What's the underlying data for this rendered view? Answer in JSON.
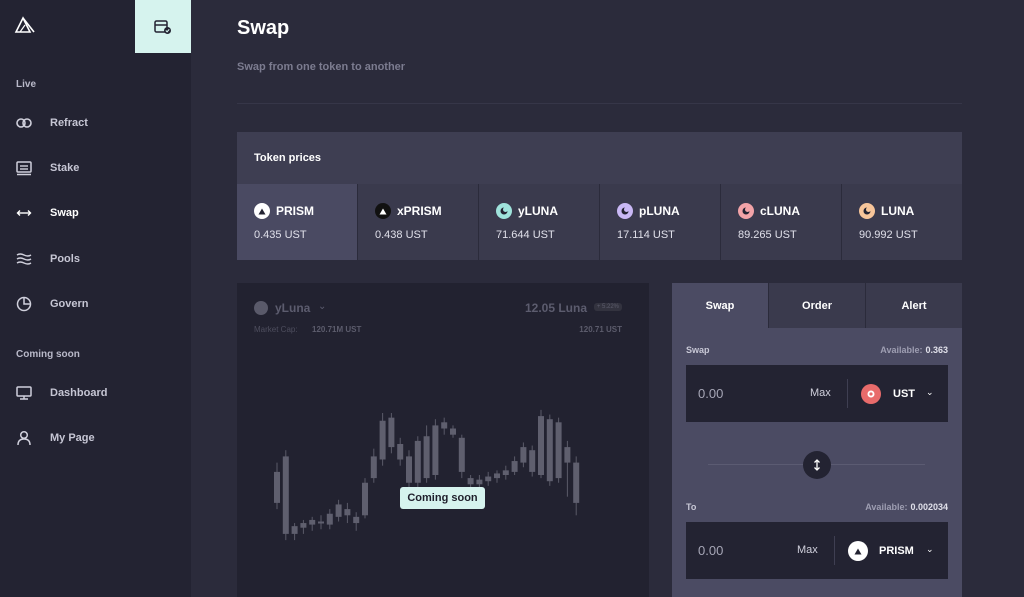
{
  "sidebar": {
    "sections": [
      {
        "label": "Live"
      },
      {
        "label": "Coming soon"
      }
    ],
    "items": [
      {
        "label": "Refract",
        "icon": "link-icon"
      },
      {
        "label": "Stake",
        "icon": "stake-icon"
      },
      {
        "label": "Swap",
        "icon": "swap-arrows-icon"
      },
      {
        "label": "Pools",
        "icon": "pools-icon"
      },
      {
        "label": "Govern",
        "icon": "pie-chart-icon"
      },
      {
        "label": "Dashboard",
        "icon": "monitor-icon"
      },
      {
        "label": "My Page",
        "icon": "user-icon"
      }
    ]
  },
  "header": {
    "title": "Swap",
    "subtitle": "Swap from one token to another"
  },
  "prices": {
    "heading": "Token prices",
    "tokens": [
      {
        "name": "PRISM",
        "price": "0.435 UST",
        "color": "#ffffff"
      },
      {
        "name": "xPRISM",
        "price": "0.438 UST",
        "color": "#111111"
      },
      {
        "name": "yLUNA",
        "price": "71.644 UST",
        "color": "#9fe3dc"
      },
      {
        "name": "pLUNA",
        "price": "17.114 UST",
        "color": "#c9b8f5"
      },
      {
        "name": "cLUNA",
        "price": "89.265 UST",
        "color": "#f2a3a8"
      },
      {
        "name": "LUNA",
        "price": "90.992 UST",
        "color": "#f7c59a"
      }
    ]
  },
  "chart": {
    "token": "yLuna",
    "market_cap_label": "Market Cap:",
    "market_cap_value": "120.71M UST",
    "price": "12.05 Luna",
    "change": "+ 5.22%",
    "price_ust": "120.71 UST",
    "overlay": "Coming soon"
  },
  "chart_data": {
    "type": "candlestick",
    "candles": [
      {
        "o": 0.62,
        "c": 0.42,
        "h": 0.68,
        "l": 0.38
      },
      {
        "o": 0.72,
        "c": 0.22,
        "h": 0.76,
        "l": 0.18
      },
      {
        "o": 0.22,
        "c": 0.27,
        "h": 0.29,
        "l": 0.18
      },
      {
        "o": 0.26,
        "c": 0.29,
        "h": 0.31,
        "l": 0.22
      },
      {
        "o": 0.28,
        "c": 0.31,
        "h": 0.33,
        "l": 0.24
      },
      {
        "o": 0.3,
        "c": 0.3,
        "h": 0.34,
        "l": 0.25
      },
      {
        "o": 0.28,
        "c": 0.35,
        "h": 0.38,
        "l": 0.25
      },
      {
        "o": 0.33,
        "c": 0.41,
        "h": 0.44,
        "l": 0.3
      },
      {
        "o": 0.38,
        "c": 0.34,
        "h": 0.42,
        "l": 0.29
      },
      {
        "o": 0.33,
        "c": 0.29,
        "h": 0.36,
        "l": 0.24
      },
      {
        "o": 0.34,
        "c": 0.55,
        "h": 0.58,
        "l": 0.32
      },
      {
        "o": 0.58,
        "c": 0.72,
        "h": 0.77,
        "l": 0.55
      },
      {
        "o": 0.7,
        "c": 0.95,
        "h": 1.0,
        "l": 0.66
      },
      {
        "o": 0.97,
        "c": 0.78,
        "h": 1.0,
        "l": 0.74
      },
      {
        "o": 0.8,
        "c": 0.7,
        "h": 0.84,
        "l": 0.66
      },
      {
        "o": 0.72,
        "c": 0.55,
        "h": 0.76,
        "l": 0.52
      },
      {
        "o": 0.55,
        "c": 0.82,
        "h": 0.85,
        "l": 0.52
      },
      {
        "o": 0.85,
        "c": 0.58,
        "h": 0.92,
        "l": 0.55
      },
      {
        "o": 0.6,
        "c": 0.92,
        "h": 0.96,
        "l": 0.57
      },
      {
        "o": 0.94,
        "c": 0.9,
        "h": 0.97,
        "l": 0.86
      },
      {
        "o": 0.9,
        "c": 0.86,
        "h": 0.92,
        "l": 0.84
      },
      {
        "o": 0.84,
        "c": 0.62,
        "h": 0.86,
        "l": 0.58
      },
      {
        "o": 0.58,
        "c": 0.54,
        "h": 0.6,
        "l": 0.5
      },
      {
        "o": 0.54,
        "c": 0.57,
        "h": 0.6,
        "l": 0.51
      },
      {
        "o": 0.56,
        "c": 0.59,
        "h": 0.62,
        "l": 0.53
      },
      {
        "o": 0.58,
        "c": 0.61,
        "h": 0.63,
        "l": 0.55
      },
      {
        "o": 0.6,
        "c": 0.63,
        "h": 0.66,
        "l": 0.57
      },
      {
        "o": 0.62,
        "c": 0.69,
        "h": 0.72,
        "l": 0.6
      },
      {
        "o": 0.68,
        "c": 0.78,
        "h": 0.81,
        "l": 0.65
      },
      {
        "o": 0.76,
        "c": 0.62,
        "h": 0.79,
        "l": 0.59
      },
      {
        "o": 0.6,
        "c": 0.98,
        "h": 1.02,
        "l": 0.58
      },
      {
        "o": 0.96,
        "c": 0.56,
        "h": 0.99,
        "l": 0.53
      },
      {
        "o": 0.58,
        "c": 0.94,
        "h": 0.97,
        "l": 0.55
      },
      {
        "o": 0.78,
        "c": 0.68,
        "h": 0.82,
        "l": 0.46
      },
      {
        "o": 0.68,
        "c": 0.42,
        "h": 0.72,
        "l": 0.34
      }
    ]
  },
  "swap": {
    "tabs": [
      "Swap",
      "Order",
      "Alert"
    ],
    "from": {
      "label": "Swap",
      "available_label": "Available:",
      "available_value": "0.363",
      "amount": "0.00",
      "max_label": "Max",
      "token": "UST",
      "token_color": "#e86b6b"
    },
    "to": {
      "label": "To",
      "available_label": "Available:",
      "available_value": "0.002034",
      "amount": "0.00",
      "max_label": "Max",
      "token": "PRISM",
      "token_color": "#ffffff"
    }
  }
}
